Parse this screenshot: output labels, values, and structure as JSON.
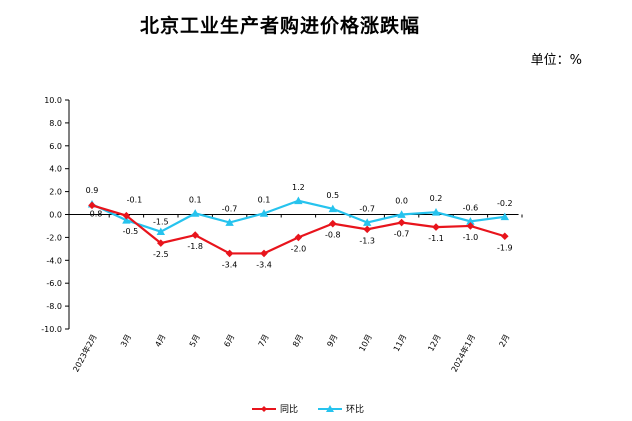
{
  "title": "北京工业生产者购进价格涨跌幅",
  "unit_text": "单位：%",
  "colors": {
    "tongbi": "#e8141c",
    "huanbi": "#26c3ee",
    "axis": "#000000"
  },
  "chart_data": {
    "type": "line",
    "title": "北京工业生产者购进价格涨跌幅",
    "categories": [
      "2023年2月",
      "3月",
      "4月",
      "5月",
      "6月",
      "7月",
      "8月",
      "9月",
      "10月",
      "11月",
      "12月",
      "2024年1月",
      "2月"
    ],
    "ylim": [
      -10.0,
      10.0
    ],
    "yticks": [
      "10.0",
      "8.0",
      "6.0",
      "4.0",
      "2.0",
      "0.0",
      "-2.0",
      "-4.0",
      "-6.0",
      "-8.0",
      "-10.0"
    ],
    "grid": false,
    "legend_position": "bottom-center",
    "series": [
      {
        "name": "同比",
        "marker": "diamond",
        "values": [
          0.8,
          -0.1,
          -2.5,
          -1.8,
          -3.4,
          -3.4,
          -2.0,
          -0.8,
          -1.3,
          -0.7,
          -1.1,
          -1.0,
          -1.9
        ],
        "labels": [
          "0.8",
          "",
          "-2.5",
          "-1.8",
          "-3.4",
          "-3.4",
          "-2.0",
          "-0.8",
          "-1.3",
          "-0.7",
          "-1.1",
          "-1.0",
          "-1.9"
        ]
      },
      {
        "name": "环比",
        "marker": "triangle",
        "values": [
          0.9,
          -0.5,
          -1.5,
          0.1,
          -0.7,
          0.1,
          1.2,
          0.5,
          -0.7,
          0.0,
          0.2,
          -0.6,
          -0.2
        ],
        "labels": [
          "0.9",
          "-0.5",
          "-1.5",
          "0.1",
          "-0.7",
          "0.1",
          "1.2",
          "0.5",
          "-0.7",
          "0.0",
          "0.2",
          "-0.6",
          "-0.2"
        ]
      }
    ],
    "extra_labels": [
      "-0.1"
    ]
  }
}
